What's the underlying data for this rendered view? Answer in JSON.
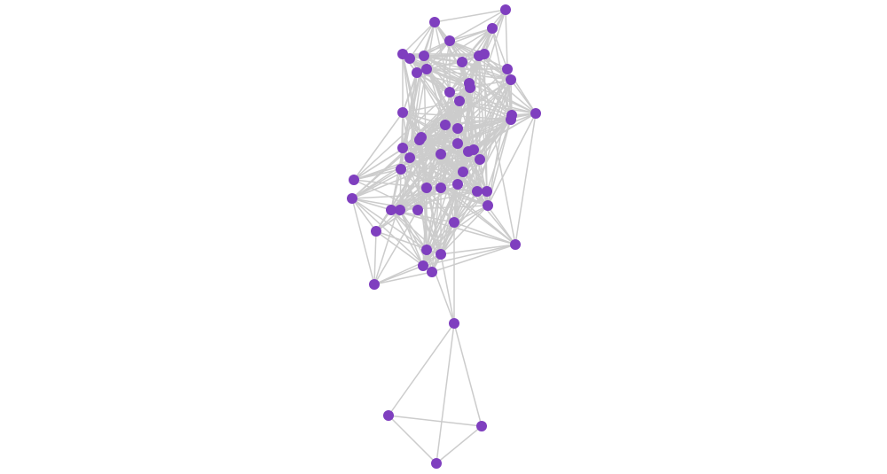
{
  "diagram": {
    "type": "network-graph",
    "node_color": "#7f3fbf",
    "edge_color": "#cccccc",
    "background": "#ffffff",
    "node_count": 58
  }
}
